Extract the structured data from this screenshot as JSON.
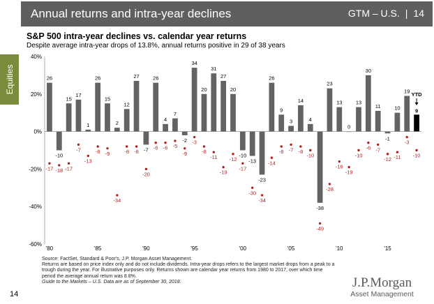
{
  "header": {
    "title": "Annual returns and intra-year declines",
    "section": "GTM – U.S.",
    "page": "14"
  },
  "side_tab": {
    "label": "Equities"
  },
  "colors": {
    "header_bg": "#5f5f5f",
    "tab_bg": "#7a8c3c",
    "bar": "#636363",
    "ytd_bar": "#000000",
    "decline": "#b2221d"
  },
  "chart_data": {
    "type": "bar",
    "title": "S&P 500 intra-year declines vs. calendar year returns",
    "subtitle": "Despite average intra-year drops of 13.8%, annual returns positive in 29 of 38 years",
    "x": [
      1980,
      1981,
      1982,
      1983,
      1984,
      1985,
      1986,
      1987,
      1988,
      1989,
      1990,
      1991,
      1992,
      1993,
      1994,
      1995,
      1996,
      1997,
      1998,
      1999,
      2000,
      2001,
      2002,
      2003,
      2004,
      2005,
      2006,
      2007,
      2008,
      2009,
      2010,
      2011,
      2012,
      2013,
      2014,
      2015,
      2016,
      2017,
      2018
    ],
    "series": [
      {
        "values": [
          26,
          -10,
          15,
          17,
          1,
          26,
          15,
          2,
          12,
          27,
          -7,
          26,
          4,
          7,
          -2,
          34,
          20,
          31,
          27,
          20,
          -10,
          -13,
          -23,
          26,
          9,
          3,
          14,
          4,
          -38,
          23,
          13,
          0,
          13,
          30,
          11,
          -1,
          10,
          19,
          9
        ],
        "labels": [
          "26",
          "-10",
          "15",
          "17",
          "1",
          "26",
          "15",
          "2",
          "12",
          "27",
          "-7",
          "26",
          "4",
          "7",
          "-2",
          "34",
          "20",
          "31",
          "27",
          "20",
          "-10",
          "-13",
          "-23",
          "26",
          "9",
          "3",
          "14",
          "4",
          "-38",
          "23",
          "13",
          "0",
          "13",
          "30",
          "11",
          "-1",
          "10",
          "19",
          "9"
        ]
      },
      {
        "values": [
          -17,
          -18,
          -17,
          -7,
          -13,
          -8,
          -9,
          -34,
          -8,
          -8,
          -20,
          -6,
          -6,
          -5,
          -9,
          -3,
          -8,
          -11,
          -19,
          -12,
          -17,
          -30,
          -34,
          -14,
          -8,
          -7,
          -8,
          -10,
          -49,
          -28,
          -16,
          -19,
          -10,
          -6,
          -7,
          -12,
          -11,
          -3,
          -10
        ],
        "labels": [
          "-17",
          "-18",
          "-17",
          "-7",
          "-13",
          "-8",
          "-9",
          "-34",
          "-8",
          "-8",
          "-20",
          "-6",
          "-6",
          "-5",
          "-9",
          "-3",
          "-8",
          "-11",
          "-19",
          "-12",
          "-17",
          "-30",
          "-34",
          "-14",
          "-8",
          "-7",
          "-8",
          "-10",
          "-49",
          "-28",
          "-16",
          "-19",
          "-10",
          "-6",
          "-7",
          "-12",
          "-11",
          "-3",
          "-10"
        ]
      }
    ],
    "ytd_label": "YTD",
    "yticks": [
      "40%",
      "20%",
      "0%",
      "-20%",
      "-40%",
      "-60%"
    ],
    "ytick_values": [
      40,
      20,
      0,
      -20,
      -40,
      -60
    ],
    "ylim": [
      -60,
      40
    ],
    "xtick_years": [
      1980,
      1985,
      1990,
      1995,
      2000,
      2005,
      2010,
      2015
    ],
    "xtick_labels": [
      "'80",
      "'85",
      "'90",
      "'95",
      "'00",
      "'05",
      "'10",
      "'15"
    ]
  },
  "footnotes": {
    "source": "Source: FactSet, Standard & Poor's, J.P. Morgan Asset Management.",
    "note": "Returns are based on price index only and do not include dividends. Intra-year drops refers to the largest market drops from a peak to a trough during the year. For illustrative purposes only. Returns shown are calendar year returns from 1980 to 2017, over which time period the average annual return was 8.8%.",
    "guide": "Guide to the Markets – U.S. Data are as of September 30, 2018."
  },
  "page_number": "14",
  "logo": {
    "name": "J.P.Morgan",
    "sub": "Asset Management"
  }
}
